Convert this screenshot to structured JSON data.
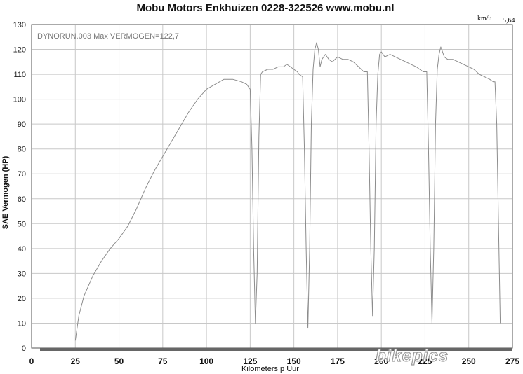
{
  "chart_data": {
    "type": "line",
    "title": "Mobu Motors Enkhuizen 0228-322526 www.mobu.nl",
    "annotation": "DYNORUN.003  Max VERMOGEN=122,7",
    "corner_unit": "km/u",
    "corner_value": "5,64",
    "xlabel": "Kilometers p Uur",
    "ylabel": "SAE Vermogen (HP)",
    "xlim": [
      0,
      275
    ],
    "ylim": [
      0,
      130
    ],
    "xticks": [
      0,
      25,
      50,
      75,
      100,
      125,
      150,
      175,
      200,
      225,
      250,
      275
    ],
    "yticks": [
      0,
      10,
      20,
      30,
      40,
      50,
      60,
      70,
      80,
      90,
      100,
      110,
      120,
      130
    ],
    "grid": true,
    "watermark": "bikepics",
    "series": [
      {
        "points": [
          [
            25,
            3
          ],
          [
            27,
            13
          ],
          [
            30,
            21
          ],
          [
            35,
            29
          ],
          [
            40,
            35
          ],
          [
            45,
            40
          ],
          [
            50,
            44
          ],
          [
            55,
            49
          ],
          [
            60,
            56
          ],
          [
            65,
            64
          ],
          [
            70,
            71
          ],
          [
            75,
            77
          ],
          [
            80,
            83
          ],
          [
            85,
            89
          ],
          [
            90,
            95
          ],
          [
            95,
            100
          ],
          [
            100,
            104
          ],
          [
            105,
            106
          ],
          [
            110,
            108
          ],
          [
            115,
            108
          ],
          [
            120,
            107
          ],
          [
            123,
            106
          ],
          [
            125,
            104
          ],
          [
            126,
            80
          ],
          [
            127,
            40
          ],
          [
            128,
            10
          ],
          [
            129,
            30
          ],
          [
            130,
            85
          ],
          [
            131,
            110
          ],
          [
            132,
            111
          ],
          [
            135,
            112
          ],
          [
            138,
            112
          ],
          [
            141,
            113
          ],
          [
            144,
            113
          ],
          [
            146,
            114
          ],
          [
            148,
            113
          ],
          [
            150,
            112
          ],
          [
            152,
            111
          ],
          [
            153,
            110
          ],
          [
            155,
            109
          ],
          [
            156,
            80
          ],
          [
            157,
            40
          ],
          [
            158,
            8
          ],
          [
            159,
            40
          ],
          [
            160,
            90
          ],
          [
            161,
            112
          ],
          [
            162,
            120
          ],
          [
            163,
            122.7
          ],
          [
            164,
            120
          ],
          [
            165,
            113
          ],
          [
            166,
            116
          ],
          [
            168,
            118
          ],
          [
            170,
            116
          ],
          [
            172,
            115
          ],
          [
            175,
            117
          ],
          [
            178,
            116
          ],
          [
            181,
            116
          ],
          [
            184,
            115
          ],
          [
            187,
            113
          ],
          [
            190,
            111
          ],
          [
            192,
            111
          ],
          [
            193,
            80
          ],
          [
            194,
            40
          ],
          [
            195,
            13
          ],
          [
            196,
            40
          ],
          [
            197,
            90
          ],
          [
            198,
            110
          ],
          [
            199,
            118
          ],
          [
            200,
            119
          ],
          [
            202,
            117
          ],
          [
            205,
            118
          ],
          [
            208,
            117
          ],
          [
            211,
            116
          ],
          [
            214,
            115
          ],
          [
            217,
            114
          ],
          [
            220,
            113
          ],
          [
            222,
            112
          ],
          [
            224,
            111
          ],
          [
            226,
            111
          ],
          [
            227,
            80
          ],
          [
            228,
            40
          ],
          [
            229,
            10
          ],
          [
            230,
            40
          ],
          [
            231,
            90
          ],
          [
            232,
            112
          ],
          [
            233,
            118
          ],
          [
            234,
            121
          ],
          [
            236,
            117
          ],
          [
            238,
            116
          ],
          [
            241,
            116
          ],
          [
            244,
            115
          ],
          [
            247,
            114
          ],
          [
            250,
            113
          ],
          [
            253,
            112
          ],
          [
            256,
            110
          ],
          [
            259,
            109
          ],
          [
            262,
            108
          ],
          [
            264,
            107
          ],
          [
            265,
            107
          ],
          [
            266,
            90
          ],
          [
            267,
            50
          ],
          [
            268,
            10
          ]
        ]
      }
    ]
  }
}
